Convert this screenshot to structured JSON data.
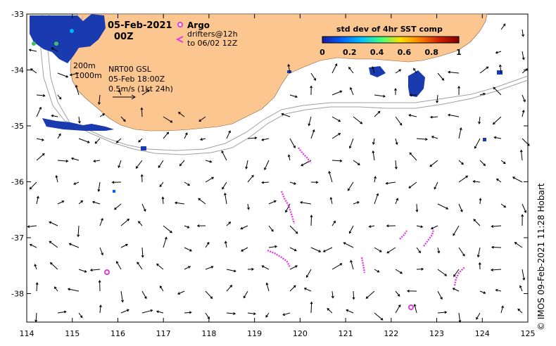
{
  "header": {
    "date": "05-Feb-2021",
    "time": "00Z"
  },
  "legend": {
    "argo_label": "Argo",
    "drifters_line1": "drifters@12h",
    "drifters_line2": "to 06/02 12Z",
    "drifter_color": "#e03ce0"
  },
  "colorbar": {
    "title": "std dev of 4hr SST comp",
    "ticks": [
      "0",
      "0.2",
      "0.4",
      "0.6",
      "0.8",
      "1"
    ],
    "colors": [
      "#1a1aa0",
      "#0060ff",
      "#00c0ff",
      "#40ff80",
      "#ffe000",
      "#ff8000",
      "#d02000",
      "#800000"
    ]
  },
  "depth_labels": {
    "d200": "200m",
    "d1000": "1000m"
  },
  "current_info": {
    "line1": "NRT00 GSL",
    "line2": "05-Feb 18:00Z",
    "line3": "0.5m/s (1kt 24h)"
  },
  "axes": {
    "x_ticks": [
      "114",
      "115",
      "116",
      "117",
      "118",
      "119",
      "120",
      "121",
      "122",
      "123",
      "124",
      "125"
    ],
    "y_ticks": [
      "-33",
      "-34",
      "-35",
      "-36",
      "-37",
      "-38"
    ]
  },
  "colors": {
    "land": "#fcc690",
    "isobath": "#a0a0a0",
    "arrow": "#000000"
  },
  "credit": "© IMOS 09-Feb-2021 11:28 Hobart"
}
